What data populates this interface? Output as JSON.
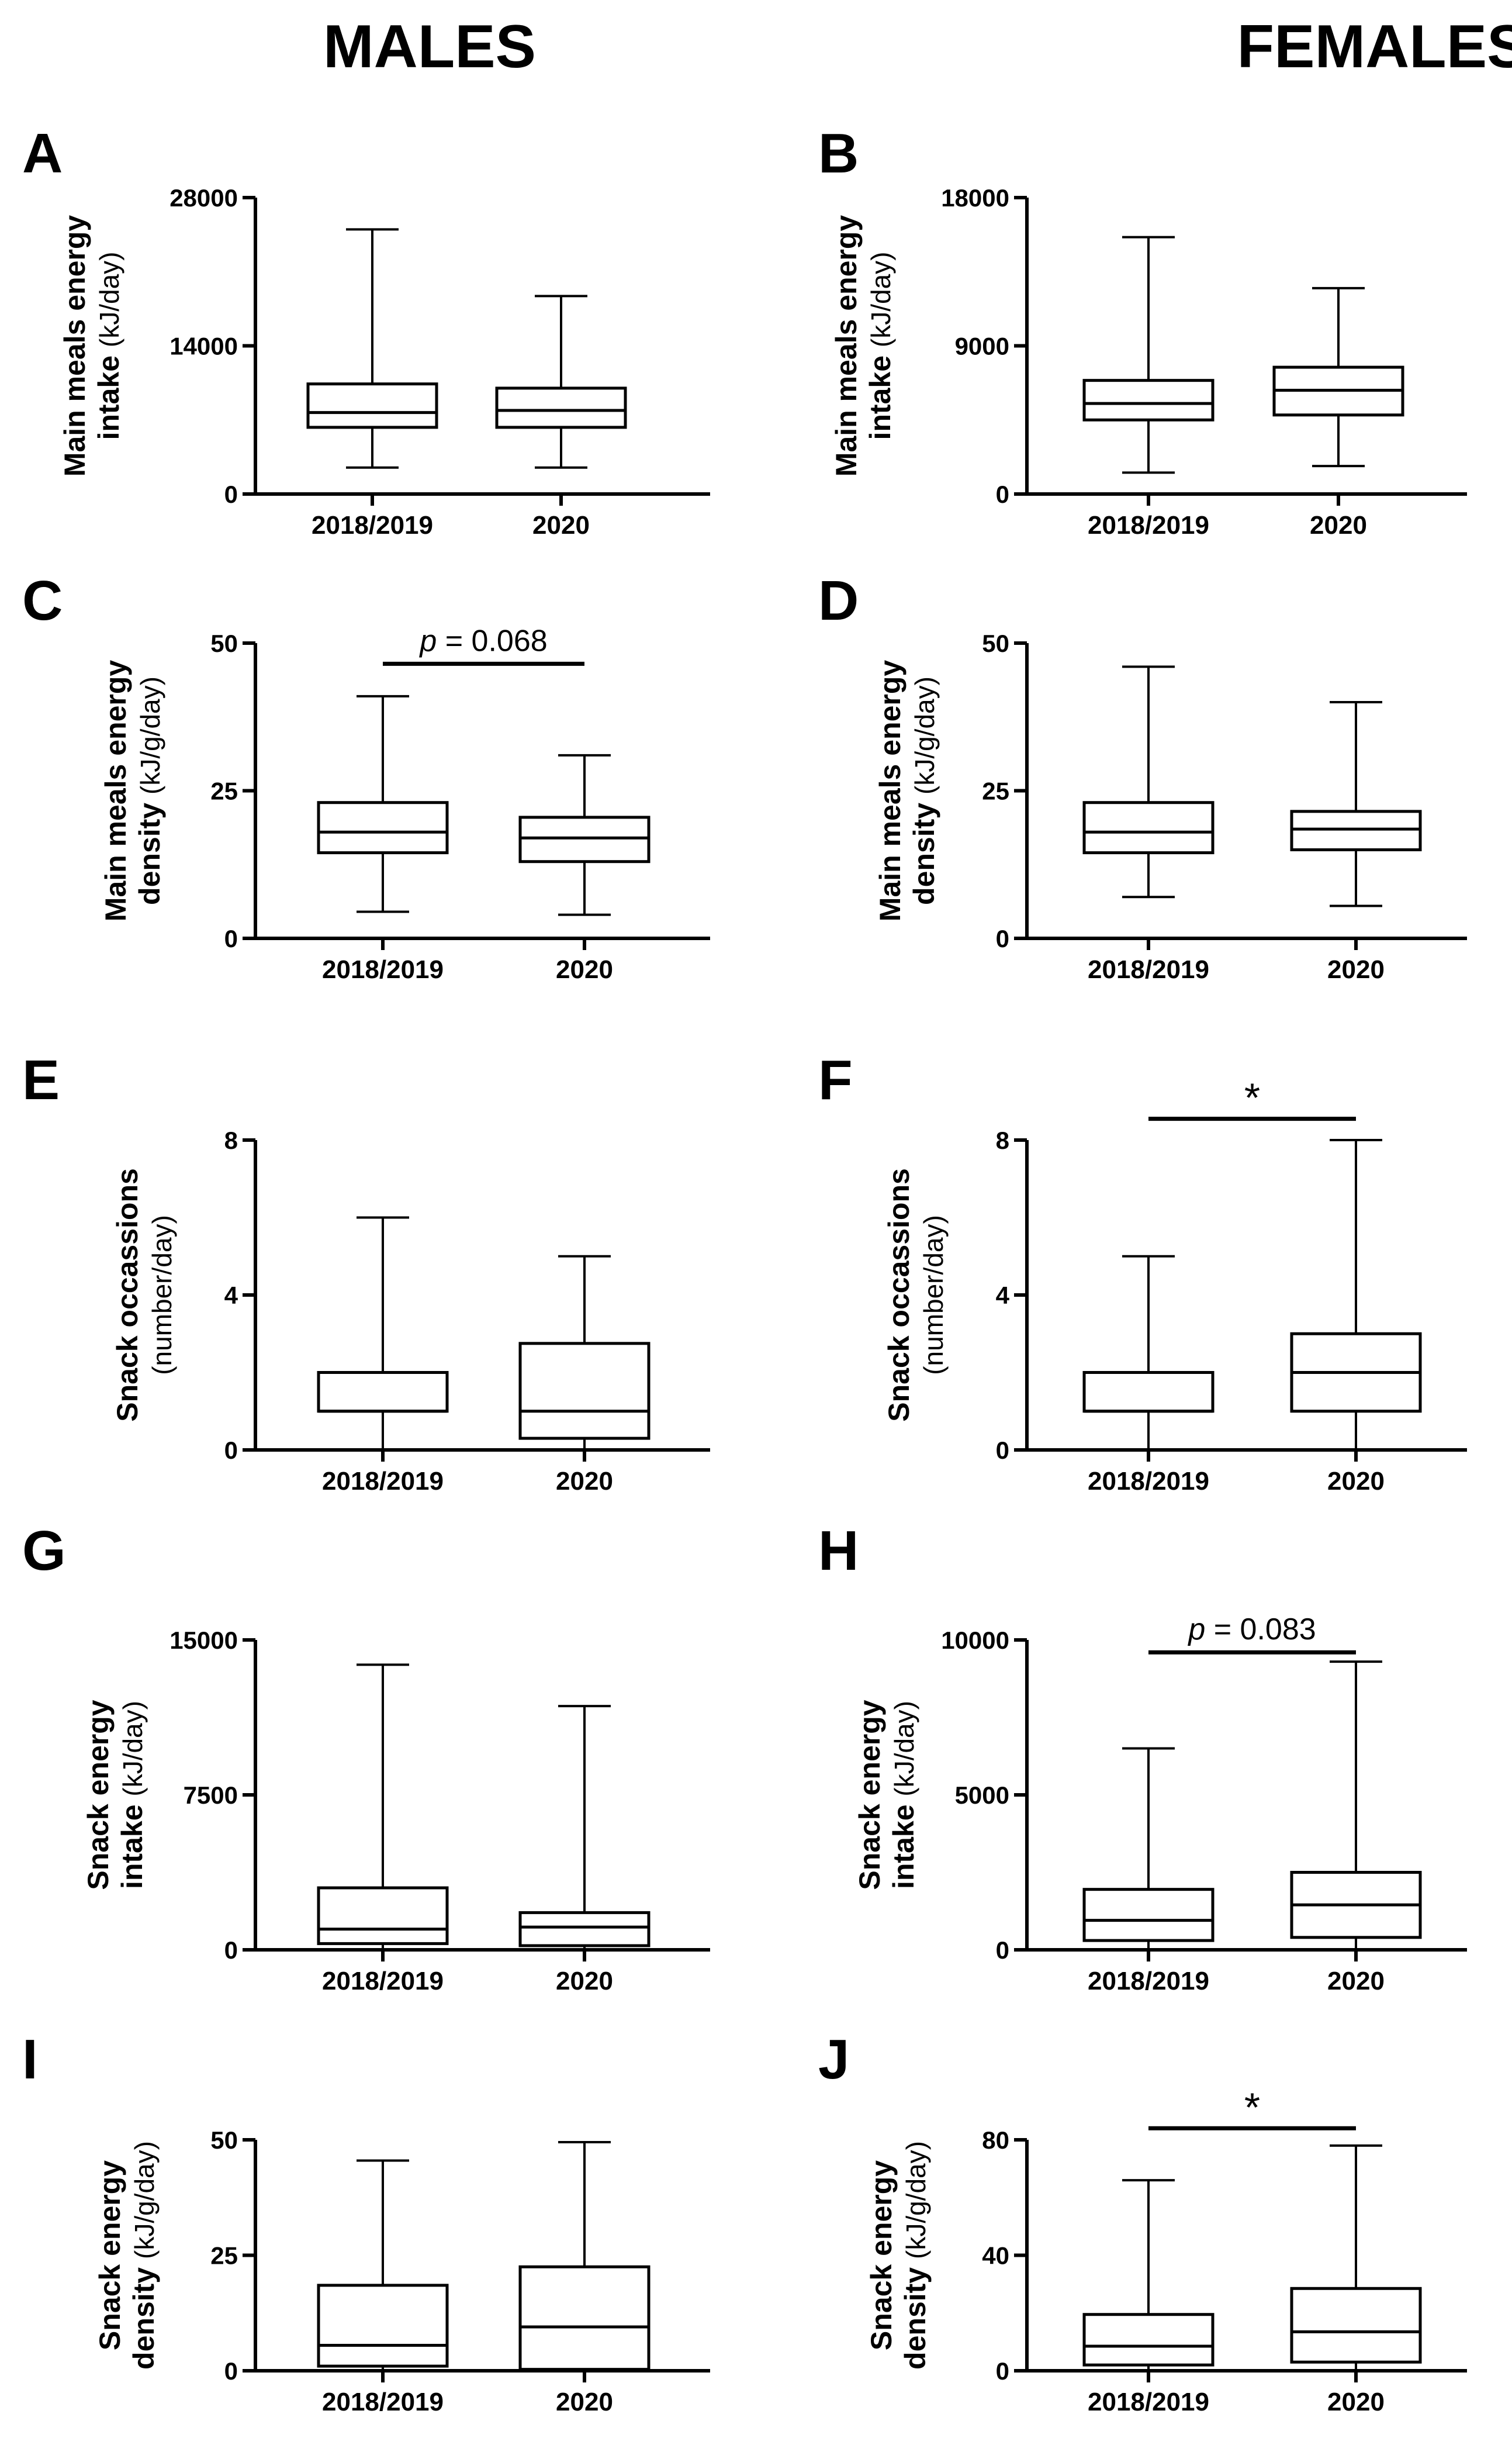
{
  "titles": {
    "males": "MALES",
    "females": "FEMALES"
  },
  "chart_data": [
    {
      "type": "box",
      "panel": "A",
      "sex": "MALES",
      "ylabel": "Main meals energy",
      "ylabel2_bold": "intake",
      "ylabel2_unit": "(kJ/day)",
      "ylim": [
        0,
        28000
      ],
      "ticks": [
        0,
        14000,
        28000
      ],
      "categories": [
        "2018/2019",
        "2020"
      ],
      "boxes": [
        {
          "min": 2500,
          "q1": 6300,
          "median": 7700,
          "q3": 10400,
          "max": 25000
        },
        {
          "min": 2500,
          "q1": 6300,
          "median": 7900,
          "q3": 10000,
          "max": 18700
        }
      ],
      "annotation": null
    },
    {
      "type": "box",
      "panel": "B",
      "sex": "FEMALES",
      "ylabel": "Main meals energy",
      "ylabel2_bold": "intake",
      "ylabel2_unit": "(kJ/day)",
      "ylim": [
        0,
        18000
      ],
      "ticks": [
        0,
        9000,
        18000
      ],
      "categories": [
        "2018/2019",
        "2020"
      ],
      "boxes": [
        {
          "min": 1300,
          "q1": 4500,
          "median": 5500,
          "q3": 6900,
          "max": 15600
        },
        {
          "min": 1700,
          "q1": 4800,
          "median": 6300,
          "q3": 7700,
          "max": 12500
        }
      ],
      "annotation": null
    },
    {
      "type": "box",
      "panel": "C",
      "sex": "MALES",
      "ylabel": "Main meals energy",
      "ylabel2_bold": "density",
      "ylabel2_unit": "(kJ/g/day)",
      "ylim": [
        0,
        50
      ],
      "ticks": [
        0,
        25,
        50
      ],
      "categories": [
        "2018/2019",
        "2020"
      ],
      "boxes": [
        {
          "min": 4.5,
          "q1": 14.5,
          "median": 18,
          "q3": 23,
          "max": 41
        },
        {
          "min": 4,
          "q1": 13,
          "median": 17,
          "q3": 20.5,
          "max": 31
        }
      ],
      "annotation": {
        "type": "text",
        "prefix": "p",
        "text": " = 0.068",
        "y": 46.5
      }
    },
    {
      "type": "box",
      "panel": "D",
      "sex": "FEMALES",
      "ylabel": "Main meals energy",
      "ylabel2_bold": "density",
      "ylabel2_unit": "(kJ/g/day)",
      "ylim": [
        0,
        50
      ],
      "ticks": [
        0,
        25,
        50
      ],
      "categories": [
        "2018/2019",
        "2020"
      ],
      "boxes": [
        {
          "min": 7,
          "q1": 14.5,
          "median": 18,
          "q3": 23,
          "max": 46
        },
        {
          "min": 5.5,
          "q1": 15,
          "median": 18.5,
          "q3": 21.5,
          "max": 40
        }
      ],
      "annotation": null
    },
    {
      "type": "box",
      "panel": "E",
      "sex": "MALES",
      "ylabel": "Snack occassions",
      "ylabel2_bold": "",
      "ylabel2_unit": "(number/day)",
      "ylim": [
        0,
        8
      ],
      "ticks": [
        0,
        4,
        8
      ],
      "categories": [
        "2018/2019",
        "2020"
      ],
      "boxes": [
        {
          "min": 0,
          "q1": 1,
          "median": 1,
          "q3": 2,
          "max": 6
        },
        {
          "min": 0,
          "q1": 0.3,
          "median": 1,
          "q3": 2.75,
          "max": 5
        }
      ],
      "annotation": null
    },
    {
      "type": "box",
      "panel": "F",
      "sex": "FEMALES",
      "ylabel": "Snack occassions",
      "ylabel2_bold": "",
      "ylabel2_unit": "(number/day)",
      "ylim": [
        0,
        8
      ],
      "ticks": [
        0,
        4,
        8
      ],
      "categories": [
        "2018/2019",
        "2020"
      ],
      "boxes": [
        {
          "min": 0,
          "q1": 1,
          "median": 1,
          "q3": 2,
          "max": 5
        },
        {
          "min": 0,
          "q1": 1,
          "median": 2,
          "q3": 3,
          "max": 8
        }
      ],
      "annotation": {
        "type": "star",
        "text": "*",
        "y": 8.55
      }
    },
    {
      "type": "box",
      "panel": "G",
      "sex": "MALES",
      "ylabel": "Snack energy",
      "ylabel2_bold": "intake",
      "ylabel2_unit": "(kJ/day)",
      "ylim": [
        0,
        15000
      ],
      "ticks": [
        0,
        7500,
        15000
      ],
      "categories": [
        "2018/2019",
        "2020"
      ],
      "boxes": [
        {
          "min": 0,
          "q1": 300,
          "median": 1000,
          "q3": 3000,
          "max": 13800
        },
        {
          "min": 0,
          "q1": 200,
          "median": 1100,
          "q3": 1800,
          "max": 11800
        }
      ],
      "annotation": null
    },
    {
      "type": "box",
      "panel": "H",
      "sex": "FEMALES",
      "ylabel": "Snack energy",
      "ylabel2_bold": "intake",
      "ylabel2_unit": "(kJ/day)",
      "ylim": [
        0,
        10000
      ],
      "ticks": [
        0,
        5000,
        10000
      ],
      "categories": [
        "2018/2019",
        "2020"
      ],
      "boxes": [
        {
          "min": 0,
          "q1": 300,
          "median": 950,
          "q3": 1950,
          "max": 6500
        },
        {
          "min": 0,
          "q1": 400,
          "median": 1450,
          "q3": 2500,
          "max": 9300
        }
      ],
      "annotation": {
        "type": "text",
        "prefix": "p",
        "text": " = 0.083",
        "y": 9600
      }
    },
    {
      "type": "box",
      "panel": "I",
      "sex": "MALES",
      "ylabel": "Snack energy",
      "ylabel2_bold": "density",
      "ylabel2_unit": "(kJ/g/day)",
      "ylim": [
        0,
        50
      ],
      "ticks": [
        0,
        25,
        50
      ],
      "categories": [
        "2018/2019",
        "2020"
      ],
      "boxes": [
        {
          "min": 0,
          "q1": 1,
          "median": 5.5,
          "q3": 18.5,
          "max": 45.5
        },
        {
          "min": 0,
          "q1": 0.3,
          "median": 9.5,
          "q3": 22.5,
          "max": 49.5
        }
      ],
      "annotation": null
    },
    {
      "type": "box",
      "panel": "J",
      "sex": "FEMALES",
      "ylabel": "Snack energy",
      "ylabel2_bold": "density",
      "ylabel2_unit": "(kJ/g/day)",
      "ylim": [
        0,
        80
      ],
      "ticks": [
        0,
        40,
        80
      ],
      "categories": [
        "2018/2019",
        "2020"
      ],
      "boxes": [
        {
          "min": 0,
          "q1": 2,
          "median": 8.5,
          "q3": 19.5,
          "max": 66
        },
        {
          "min": 0,
          "q1": 3,
          "median": 13.5,
          "q3": 28.5,
          "max": 78
        }
      ],
      "annotation": {
        "type": "star",
        "text": "*",
        "y": 84
      }
    }
  ]
}
